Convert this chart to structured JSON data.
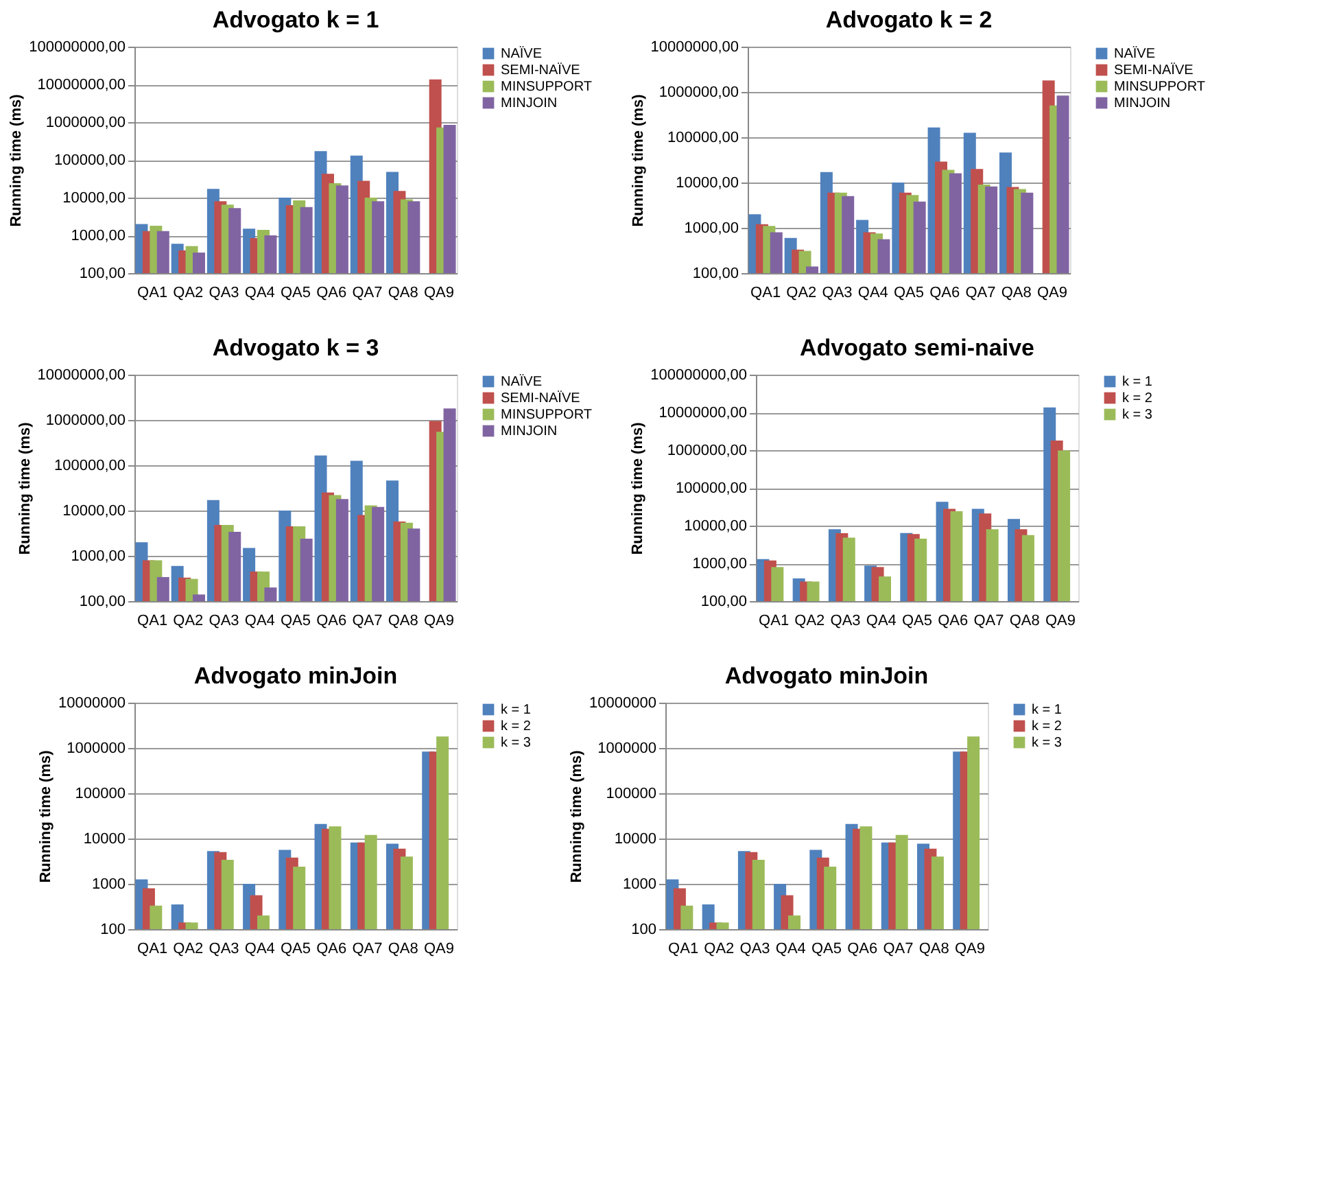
{
  "chart_data": [
    {
      "type": "bar",
      "title": "Advogato k = 1",
      "ylabel": "Running time (ms)",
      "categories": [
        "QA1",
        "QA2",
        "QA3",
        "QA4",
        "QA5",
        "QA6",
        "QA7",
        "QA8",
        "QA9"
      ],
      "log": true,
      "grid": "y",
      "legend": "right",
      "ylim": [
        100,
        100000000
      ],
      "yticks": [
        {
          "value": 100,
          "label": "100,00"
        },
        {
          "value": 1000,
          "label": "1000,00"
        },
        {
          "value": 10000,
          "label": "10000,00"
        },
        {
          "value": 100000,
          "label": "100000,00"
        },
        {
          "value": 1000000,
          "label": "1000000,00"
        },
        {
          "value": 10000000,
          "label": "10000000,00"
        },
        {
          "value": 100000000,
          "label": "100000000,00"
        }
      ],
      "series": [
        {
          "name": "NAÏVE",
          "color": "#4f81bd",
          "values": [
            2000,
            600,
            17000,
            1500,
            10000,
            170000,
            130000,
            48000,
            null
          ]
        },
        {
          "name": "SEMI-NAÏVE",
          "color": "#c0504d",
          "values": [
            1300,
            400,
            8000,
            850,
            6300,
            43000,
            28000,
            15000,
            13500000
          ]
        },
        {
          "name": "MINSUPPORT",
          "color": "#9bbb59",
          "values": [
            1800,
            520,
            6500,
            1400,
            8500,
            24000,
            10000,
            9000,
            720000
          ]
        },
        {
          "name": "MINJOIN",
          "color": "#8064a2",
          "values": [
            1300,
            350,
            5300,
            1000,
            5600,
            21000,
            8000,
            8000,
            850000
          ]
        }
      ]
    },
    {
      "type": "bar",
      "title": "Advogato k = 2",
      "ylabel": "Running time (ms)",
      "categories": [
        "QA1",
        "QA2",
        "QA3",
        "QA4",
        "QA5",
        "QA6",
        "QA7",
        "QA8",
        "QA9"
      ],
      "log": true,
      "grid": "y",
      "legend": "right",
      "ylim": [
        100,
        10000000
      ],
      "yticks": [
        {
          "value": 100,
          "label": "100,00"
        },
        {
          "value": 1000,
          "label": "1000,00"
        },
        {
          "value": 10000,
          "label": "10000,00"
        },
        {
          "value": 100000,
          "label": "100000,00"
        },
        {
          "value": 1000000,
          "label": "1000000,00"
        },
        {
          "value": 10000000,
          "label": "10000000,00"
        }
      ],
      "series": [
        {
          "name": "NAÏVE",
          "color": "#4f81bd",
          "values": [
            2000,
            600,
            17000,
            1500,
            10000,
            165000,
            125000,
            46000,
            null
          ]
        },
        {
          "name": "SEMI-NAÏVE",
          "color": "#c0504d",
          "values": [
            1200,
            330,
            6000,
            800,
            6000,
            29000,
            20000,
            8000,
            1800000
          ]
        },
        {
          "name": "MINSUPPORT",
          "color": "#9bbb59",
          "values": [
            1100,
            310,
            6000,
            750,
            5300,
            19000,
            9000,
            7200,
            500000
          ]
        },
        {
          "name": "MINJOIN",
          "color": "#8064a2",
          "values": [
            800,
            140,
            5000,
            560,
            3800,
            16000,
            8200,
            6000,
            830000
          ]
        }
      ]
    },
    {
      "type": "bar",
      "title": "Advogato k = 3",
      "ylabel": "Running time (ms)",
      "categories": [
        "QA1",
        "QA2",
        "QA3",
        "QA4",
        "QA5",
        "QA6",
        "QA7",
        "QA8",
        "QA9"
      ],
      "log": true,
      "grid": "y",
      "legend": "right",
      "ylim": [
        100,
        10000000
      ],
      "yticks": [
        {
          "value": 100,
          "label": "100,00"
        },
        {
          "value": 1000,
          "label": "1000,00"
        },
        {
          "value": 10000,
          "label": "10000,00"
        },
        {
          "value": 100000,
          "label": "100000,00"
        },
        {
          "value": 1000000,
          "label": "1000000,00"
        },
        {
          "value": 10000000,
          "label": "10000000,00"
        }
      ],
      "series": [
        {
          "name": "NAÏVE",
          "color": "#4f81bd",
          "values": [
            2000,
            600,
            17000,
            1500,
            10000,
            165000,
            125000,
            46000,
            null
          ]
        },
        {
          "name": "SEMI-NAÏVE",
          "color": "#c0504d",
          "values": [
            800,
            330,
            4800,
            450,
            4500,
            25000,
            8000,
            5700,
            950000
          ]
        },
        {
          "name": "MINSUPPORT",
          "color": "#9bbb59",
          "values": [
            800,
            310,
            4800,
            450,
            4500,
            22000,
            13000,
            5400,
            550000
          ]
        },
        {
          "name": "MINJOIN",
          "color": "#8064a2",
          "values": [
            340,
            140,
            3400,
            200,
            2400,
            18000,
            12000,
            4000,
            1800000
          ]
        }
      ]
    },
    {
      "type": "bar",
      "title": "Advogato semi-naive",
      "ylabel": "Running time (ms)",
      "categories": [
        "QA1",
        "QA2",
        "QA3",
        "QA4",
        "QA5",
        "QA6",
        "QA7",
        "QA8",
        "QA9"
      ],
      "log": true,
      "grid": "y",
      "legend": "right",
      "ylim": [
        100,
        100000000
      ],
      "yticks": [
        {
          "value": 100,
          "label": "100,00"
        },
        {
          "value": 1000,
          "label": "1000,00"
        },
        {
          "value": 10000,
          "label": "10000,00"
        },
        {
          "value": 100000,
          "label": "100000,00"
        },
        {
          "value": 1000000,
          "label": "1000000,00"
        },
        {
          "value": 10000000,
          "label": "10000000,00"
        },
        {
          "value": 100000000,
          "label": "100000000,00"
        }
      ],
      "series": [
        {
          "name": "k = 1",
          "color": "#4f81bd",
          "values": [
            1300,
            400,
            8000,
            870,
            6400,
            43000,
            28000,
            15000,
            13500000
          ]
        },
        {
          "name": "k = 2",
          "color": "#c0504d",
          "values": [
            1200,
            330,
            6300,
            800,
            6000,
            28000,
            21000,
            8000,
            1800000
          ]
        },
        {
          "name": "k = 3",
          "color": "#9bbb59",
          "values": [
            800,
            330,
            4800,
            450,
            4500,
            24000,
            8000,
            5600,
            980000
          ]
        }
      ]
    },
    {
      "type": "bar",
      "title": "Advogato minJoin",
      "ylabel": "Running time (ms)",
      "categories": [
        "QA1",
        "QA2",
        "QA3",
        "QA4",
        "QA5",
        "QA6",
        "QA7",
        "QA8",
        "QA9"
      ],
      "log": true,
      "grid": "y",
      "legend": "right",
      "ylim": [
        100,
        10000000
      ],
      "yticks": [
        100,
        1000,
        10000,
        100000,
        1000000,
        10000000
      ],
      "series": [
        {
          "name": "k = 1",
          "color": "#4f81bd",
          "values": [
            1250,
            350,
            5300,
            1000,
            5600,
            21000,
            8200,
            7700,
            830000
          ]
        },
        {
          "name": "k = 2",
          "color": "#c0504d",
          "values": [
            800,
            140,
            5000,
            560,
            3800,
            16500,
            8200,
            6000,
            830000
          ]
        },
        {
          "name": "k = 3",
          "color": "#9bbb59",
          "values": [
            330,
            140,
            3400,
            200,
            2400,
            18500,
            12000,
            4000,
            1800000
          ]
        }
      ]
    },
    {
      "type": "bar",
      "title": "Advogato minJoin",
      "ylabel": "Running time (ms)",
      "categories": [
        "QA1",
        "QA2",
        "QA3",
        "QA4",
        "QA5",
        "QA6",
        "QA7",
        "QA8",
        "QA9"
      ],
      "log": true,
      "grid": "y",
      "legend": "right",
      "ylim": [
        100,
        10000000
      ],
      "yticks": [
        100,
        1000,
        10000,
        100000,
        1000000,
        10000000
      ],
      "series": [
        {
          "name": "k = 1",
          "color": "#4f81bd",
          "values": [
            1250,
            350,
            5300,
            1000,
            5600,
            21000,
            8200,
            7700,
            830000
          ]
        },
        {
          "name": "k = 2",
          "color": "#c0504d",
          "values": [
            800,
            140,
            5000,
            560,
            3800,
            16500,
            8200,
            6000,
            830000
          ]
        },
        {
          "name": "k = 3",
          "color": "#9bbb59",
          "values": [
            330,
            140,
            3400,
            200,
            2400,
            18500,
            12000,
            4000,
            1800000
          ]
        }
      ]
    }
  ]
}
